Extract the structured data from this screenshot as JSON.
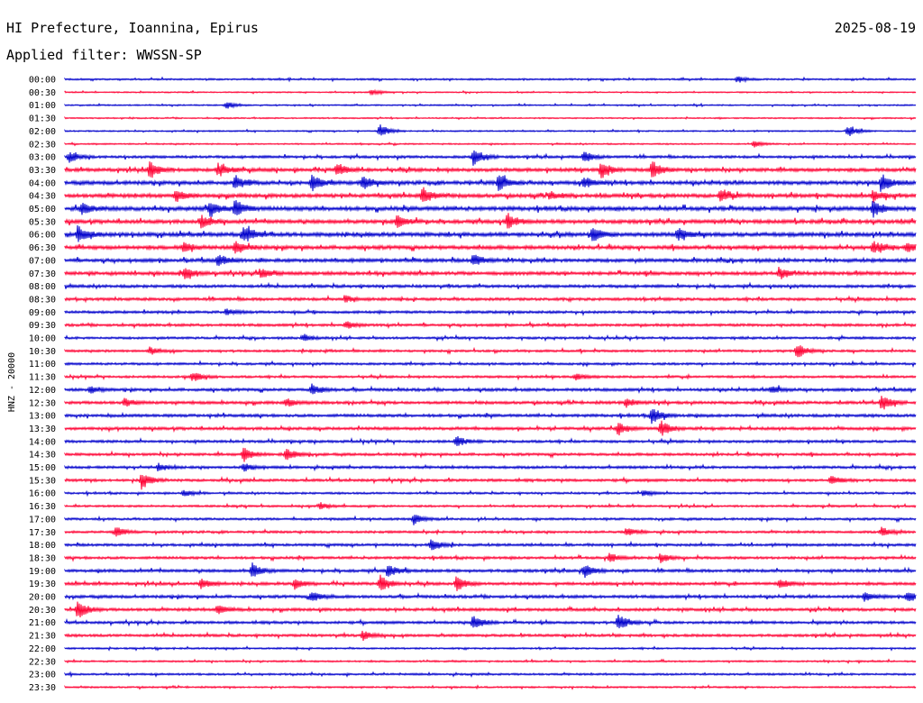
{
  "header": {
    "location": "HI Prefecture, Ioannina, Epirus",
    "date": "2025-08-19",
    "filter": "Applied filter: WWSSN-SP"
  },
  "chart_data": {
    "type": "line",
    "subtype": "helicorder",
    "channel_label": "HNZ - 20000",
    "row_labels": [
      "00:00",
      "00:30",
      "01:00",
      "01:30",
      "02:00",
      "02:30",
      "03:00",
      "03:30",
      "04:00",
      "04:30",
      "05:00",
      "05:30",
      "06:00",
      "06:30",
      "07:00",
      "07:30",
      "08:00",
      "08:30",
      "09:00",
      "09:30",
      "10:00",
      "10:30",
      "11:00",
      "11:30",
      "12:00",
      "12:30",
      "13:00",
      "13:30",
      "14:00",
      "14:30",
      "15:00",
      "15:30",
      "16:00",
      "16:30",
      "17:00",
      "17:30",
      "18:00",
      "18:30",
      "19:00",
      "19:30",
      "20:00",
      "20:30",
      "21:00",
      "21:30",
      "22:00",
      "22:30",
      "23:00",
      "23:30"
    ],
    "trace_colors": [
      "#0000cc",
      "#ff0033"
    ],
    "noise_level": [
      0.6,
      0.45,
      0.5,
      0.45,
      0.5,
      0.5,
      0.9,
      1.2,
      1.3,
      1.3,
      1.4,
      1.3,
      1.4,
      1.3,
      1.2,
      1.2,
      1.0,
      1.0,
      0.9,
      0.9,
      0.8,
      0.8,
      0.8,
      0.8,
      1.0,
      1.0,
      1.0,
      1.0,
      0.9,
      0.9,
      0.9,
      0.9,
      0.7,
      0.7,
      0.8,
      0.8,
      0.9,
      0.9,
      1.0,
      1.0,
      1.0,
      1.0,
      0.9,
      0.9,
      0.6,
      0.6,
      0.7,
      0.6
    ],
    "events": [
      {
        "row": 0,
        "x": 0.79,
        "amp": 0.5
      },
      {
        "row": 1,
        "x": 0.36,
        "amp": 0.4
      },
      {
        "row": 2,
        "x": 0.19,
        "amp": 0.5
      },
      {
        "row": 4,
        "x": 0.37,
        "amp": 1.0
      },
      {
        "row": 4,
        "x": 0.92,
        "amp": 0.9
      },
      {
        "row": 5,
        "x": 0.81,
        "amp": 0.5
      },
      {
        "row": 6,
        "x": 0.005,
        "amp": 0.8
      },
      {
        "row": 6,
        "x": 0.48,
        "amp": 1.3
      },
      {
        "row": 6,
        "x": 0.61,
        "amp": 0.8
      },
      {
        "row": 7,
        "x": 0.1,
        "amp": 1.4
      },
      {
        "row": 7,
        "x": 0.18,
        "amp": 1.0
      },
      {
        "row": 7,
        "x": 0.32,
        "amp": 1.0
      },
      {
        "row": 7,
        "x": 0.63,
        "amp": 1.3
      },
      {
        "row": 7,
        "x": 0.69,
        "amp": 1.3
      },
      {
        "row": 8,
        "x": 0.2,
        "amp": 1.2
      },
      {
        "row": 8,
        "x": 0.29,
        "amp": 1.3
      },
      {
        "row": 8,
        "x": 0.35,
        "amp": 1.1
      },
      {
        "row": 8,
        "x": 0.51,
        "amp": 1.3
      },
      {
        "row": 8,
        "x": 0.61,
        "amp": 0.8
      },
      {
        "row": 8,
        "x": 0.96,
        "amp": 1.3
      },
      {
        "row": 9,
        "x": 0.13,
        "amp": 0.8
      },
      {
        "row": 9,
        "x": 0.42,
        "amp": 1.2
      },
      {
        "row": 9,
        "x": 0.57,
        "amp": 0.6
      },
      {
        "row": 9,
        "x": 0.77,
        "amp": 0.8
      },
      {
        "row": 9,
        "x": 0.95,
        "amp": 0.9
      },
      {
        "row": 10,
        "x": 0.02,
        "amp": 0.9
      },
      {
        "row": 10,
        "x": 0.17,
        "amp": 1.3
      },
      {
        "row": 10,
        "x": 0.2,
        "amp": 1.3
      },
      {
        "row": 10,
        "x": 0.95,
        "amp": 1.3
      },
      {
        "row": 11,
        "x": 0.16,
        "amp": 0.9
      },
      {
        "row": 11,
        "x": 0.39,
        "amp": 0.9
      },
      {
        "row": 11,
        "x": 0.52,
        "amp": 1.2
      },
      {
        "row": 12,
        "x": 0.015,
        "amp": 1.3
      },
      {
        "row": 12,
        "x": 0.21,
        "amp": 1.3
      },
      {
        "row": 12,
        "x": 0.62,
        "amp": 1.1
      },
      {
        "row": 12,
        "x": 0.72,
        "amp": 1.1
      },
      {
        "row": 13,
        "x": 0.14,
        "amp": 0.7
      },
      {
        "row": 13,
        "x": 0.2,
        "amp": 1.2
      },
      {
        "row": 13,
        "x": 0.95,
        "amp": 1.0
      },
      {
        "row": 13,
        "x": 0.99,
        "amp": 0.7
      },
      {
        "row": 14,
        "x": 0.18,
        "amp": 1.0
      },
      {
        "row": 14,
        "x": 0.48,
        "amp": 0.9
      },
      {
        "row": 15,
        "x": 0.14,
        "amp": 1.0
      },
      {
        "row": 15,
        "x": 0.23,
        "amp": 0.8
      },
      {
        "row": 15,
        "x": 0.84,
        "amp": 0.8
      },
      {
        "row": 17,
        "x": 0.33,
        "amp": 0.5
      },
      {
        "row": 18,
        "x": 0.19,
        "amp": 0.5
      },
      {
        "row": 19,
        "x": 0.33,
        "amp": 0.6
      },
      {
        "row": 20,
        "x": 0.28,
        "amp": 0.5
      },
      {
        "row": 21,
        "x": 0.1,
        "amp": 0.6
      },
      {
        "row": 21,
        "x": 0.86,
        "amp": 1.2
      },
      {
        "row": 23,
        "x": 0.15,
        "amp": 0.7
      },
      {
        "row": 23,
        "x": 0.6,
        "amp": 0.5
      },
      {
        "row": 24,
        "x": 0.03,
        "amp": 0.6
      },
      {
        "row": 24,
        "x": 0.29,
        "amp": 0.8
      },
      {
        "row": 24,
        "x": 0.83,
        "amp": 0.6
      },
      {
        "row": 25,
        "x": 0.07,
        "amp": 0.6
      },
      {
        "row": 25,
        "x": 0.26,
        "amp": 0.6
      },
      {
        "row": 25,
        "x": 0.66,
        "amp": 0.6
      },
      {
        "row": 25,
        "x": 0.96,
        "amp": 1.3
      },
      {
        "row": 26,
        "x": 0.69,
        "amp": 1.2
      },
      {
        "row": 27,
        "x": 0.65,
        "amp": 1.0
      },
      {
        "row": 27,
        "x": 0.7,
        "amp": 1.2
      },
      {
        "row": 28,
        "x": 0.46,
        "amp": 0.8
      },
      {
        "row": 29,
        "x": 0.21,
        "amp": 1.1
      },
      {
        "row": 29,
        "x": 0.26,
        "amp": 0.9
      },
      {
        "row": 30,
        "x": 0.11,
        "amp": 0.6
      },
      {
        "row": 30,
        "x": 0.21,
        "amp": 0.6
      },
      {
        "row": 31,
        "x": 0.09,
        "amp": 1.3
      },
      {
        "row": 31,
        "x": 0.9,
        "amp": 0.8
      },
      {
        "row": 32,
        "x": 0.14,
        "amp": 0.5
      },
      {
        "row": 32,
        "x": 0.68,
        "amp": 0.5
      },
      {
        "row": 33,
        "x": 0.3,
        "amp": 0.5
      },
      {
        "row": 34,
        "x": 0.41,
        "amp": 0.8
      },
      {
        "row": 35,
        "x": 0.06,
        "amp": 0.8
      },
      {
        "row": 35,
        "x": 0.66,
        "amp": 0.6
      },
      {
        "row": 35,
        "x": 0.96,
        "amp": 0.7
      },
      {
        "row": 36,
        "x": 0.43,
        "amp": 1.0
      },
      {
        "row": 37,
        "x": 0.64,
        "amp": 0.7
      },
      {
        "row": 37,
        "x": 0.7,
        "amp": 0.7
      },
      {
        "row": 38,
        "x": 0.22,
        "amp": 1.1
      },
      {
        "row": 38,
        "x": 0.38,
        "amp": 1.0
      },
      {
        "row": 38,
        "x": 0.61,
        "amp": 1.0
      },
      {
        "row": 39,
        "x": 0.16,
        "amp": 0.9
      },
      {
        "row": 39,
        "x": 0.27,
        "amp": 0.8
      },
      {
        "row": 39,
        "x": 0.37,
        "amp": 1.3
      },
      {
        "row": 39,
        "x": 0.46,
        "amp": 1.2
      },
      {
        "row": 39,
        "x": 0.84,
        "amp": 0.7
      },
      {
        "row": 40,
        "x": 0.29,
        "amp": 0.8
      },
      {
        "row": 40,
        "x": 0.94,
        "amp": 0.7
      },
      {
        "row": 40,
        "x": 0.99,
        "amp": 0.8
      },
      {
        "row": 41,
        "x": 0.015,
        "amp": 1.4
      },
      {
        "row": 41,
        "x": 0.18,
        "amp": 0.7
      },
      {
        "row": 42,
        "x": 0.48,
        "amp": 1.3
      },
      {
        "row": 42,
        "x": 0.65,
        "amp": 1.3
      },
      {
        "row": 43,
        "x": 0.35,
        "amp": 0.7
      }
    ]
  }
}
